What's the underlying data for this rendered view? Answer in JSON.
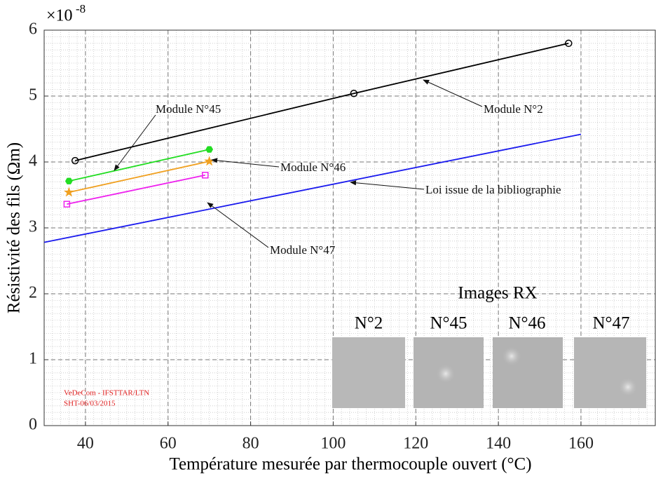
{
  "chart_data": {
    "type": "line",
    "x_label": "Température mesurée par thermocouple ouvert (°C)",
    "y_label": "Résistivité des fils (Ωm)",
    "y_scale_base": "×10",
    "y_scale_exponent": "-8",
    "xlim": [
      30,
      178
    ],
    "ylim": [
      0,
      6
    ],
    "xticks": [
      40,
      60,
      80,
      100,
      120,
      140,
      160
    ],
    "yticks": [
      0,
      1,
      2,
      3,
      4,
      5,
      6
    ],
    "grid": true,
    "minor_grid": true,
    "series": [
      {
        "name": "Module N°2",
        "color": "#000000",
        "marker": "circle",
        "x": [
          37.5,
          105,
          157
        ],
        "values": [
          4.02,
          5.04,
          5.8
        ]
      },
      {
        "name": "Module N°45",
        "color": "#22dd22",
        "marker": "hexagon",
        "x": [
          36,
          70
        ],
        "values": [
          3.71,
          4.19
        ]
      },
      {
        "name": "Module N°46",
        "color": "#f0a020",
        "marker": "star",
        "x": [
          36,
          70
        ],
        "values": [
          3.54,
          4.01
        ]
      },
      {
        "name": "Module N°47",
        "color": "#ee22ee",
        "marker": "square",
        "x": [
          35.5,
          69
        ],
        "values": [
          3.36,
          3.8
        ]
      },
      {
        "name": "Loi issue de la bibliographie",
        "color": "#1a1aee",
        "marker": "none",
        "x": [
          30,
          160
        ],
        "values": [
          2.78,
          4.42
        ]
      }
    ],
    "inset_title": "Images RX",
    "inset_labels": [
      "N°2",
      "N°45",
      "N°46",
      "N°47"
    ],
    "watermark": [
      "VeDeCom - IFSTTAR/LTN",
      "SHT-06/03/2015"
    ]
  }
}
